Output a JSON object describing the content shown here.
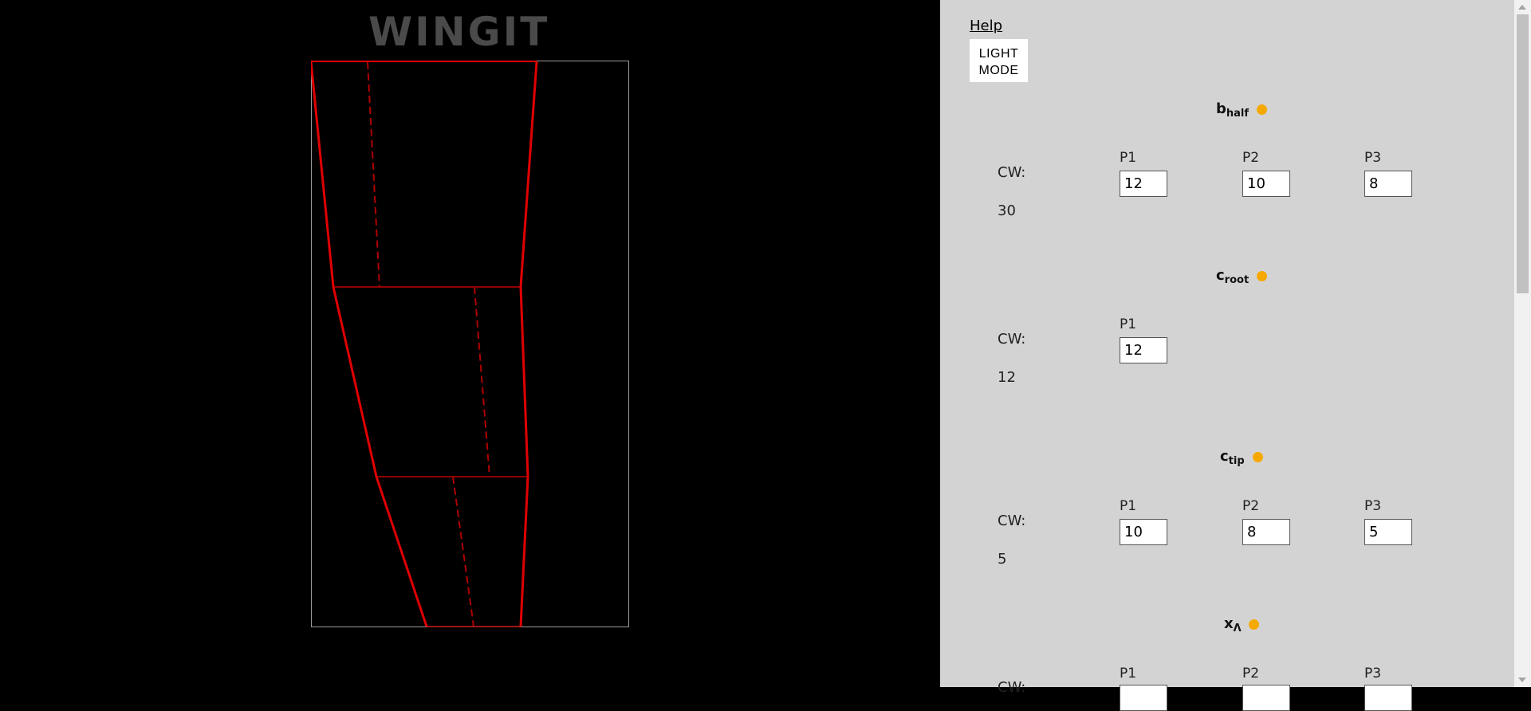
{
  "app": {
    "logo_text": "WINGIT"
  },
  "colors": {
    "wing_stroke": "#e00000",
    "frame": "#9a9a9a",
    "accent_dot": "#f5a900",
    "panel_bg": "#d3d3d3"
  },
  "header": {
    "help_label": "Help",
    "mode_button": {
      "line1": "LIGHT",
      "line2": "MODE"
    }
  },
  "params": [
    {
      "symbol": "b",
      "sub": "half",
      "cw_label": "CW:",
      "cw_value": "30",
      "columns": [
        {
          "label": "P1",
          "value": "12"
        },
        {
          "label": "P2",
          "value": "10"
        },
        {
          "label": "P3",
          "value": "8"
        }
      ]
    },
    {
      "symbol": "c",
      "sub": "root",
      "cw_label": "CW:",
      "cw_value": "12",
      "columns": [
        {
          "label": "P1",
          "value": "12"
        }
      ]
    },
    {
      "symbol": "c",
      "sub": "tip",
      "cw_label": "CW:",
      "cw_value": "5",
      "columns": [
        {
          "label": "P1",
          "value": "10"
        },
        {
          "label": "P2",
          "value": "8"
        },
        {
          "label": "P3",
          "value": "5"
        }
      ]
    },
    {
      "symbol": "x",
      "sub": "Λ",
      "cw_label": "CW:",
      "cw_value": "",
      "columns": [
        {
          "label": "P1",
          "value": ""
        },
        {
          "label": "P2",
          "value": ""
        },
        {
          "label": "P3",
          "value": ""
        }
      ]
    }
  ]
}
